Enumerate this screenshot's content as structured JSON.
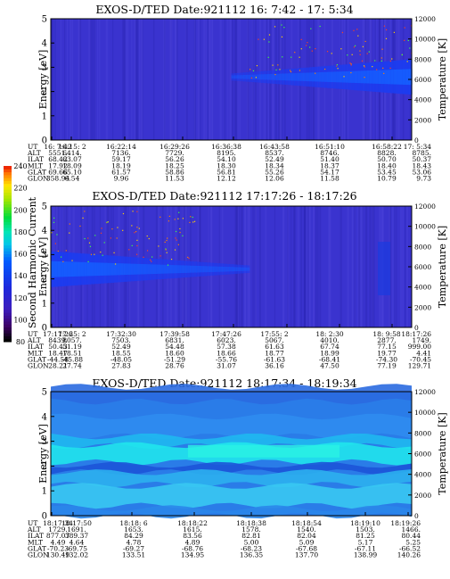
{
  "chart_data": [
    {
      "type": "heatmap",
      "title": "EXOS-D/TED   Date:921112  16: 7:42 - 17: 5:34",
      "ylabel": "Energy [eV]",
      "y2label": "Temperature [K]",
      "ylim": [
        0,
        5
      ],
      "y2lim": [
        0,
        12000
      ],
      "yticks": [
        "0",
        "1",
        "2",
        "3",
        "4",
        "5"
      ],
      "y2ticks": [
        "0",
        "2000",
        "4000",
        "6000",
        "8000",
        "10000",
        "12000"
      ],
      "ephemeris": {
        "row_labels": [
          "UT",
          "ALT",
          "ILAT",
          "MLT",
          "GLAT",
          "GLON"
        ],
        "columns": [
          [
            "16: 7:42",
            "5551.",
            "68.42",
            "17.92",
            "69.66",
            "358.94"
          ],
          [
            "16:15: 2",
            "6414.",
            "63.07",
            "18.09",
            "65.10",
            "6.54"
          ],
          [
            "16:22:14",
            "7136.",
            "59.17",
            "18.19",
            "61.57",
            "9.96"
          ],
          [
            "16:29:26",
            "7729.",
            "56.26",
            "18.25",
            "58.86",
            "11.53"
          ],
          [
            "16:36:38",
            "8195.",
            "54.10",
            "18.30",
            "56.81",
            "12.12"
          ],
          [
            "16:43:58",
            "8537.",
            "52.49",
            "18.34",
            "55.26",
            "12.06"
          ],
          [
            "16:51:10",
            "8746.",
            "51.40",
            "18.37",
            "54.17",
            "11.58"
          ],
          [
            "16:58:22",
            "8828.",
            "50.70",
            "18.40",
            "53.45",
            "10.79"
          ],
          [
            "17: 5:34",
            "8785.",
            "50.37",
            "18.43",
            "53.06",
            "9.73"
          ]
        ]
      },
      "band": [
        {
          "energy": 2.6,
          "time_start": "16:36:38",
          "time_end": "17: 5:34",
          "intensity": "high (~150)"
        }
      ]
    },
    {
      "type": "heatmap",
      "title": "EXOS-D/TED   Date:921112  17:17:26 - 18:17:26",
      "ylabel": "Energy [eV]",
      "y2label": "Temperature [K]",
      "ylim": [
        0,
        5
      ],
      "y2lim": [
        0,
        12000
      ],
      "yticks": [
        "0",
        "1",
        "2",
        "3",
        "4",
        "5"
      ],
      "y2ticks": [
        "0",
        "2000",
        "4000",
        "6000",
        "8000",
        "10000",
        "12000"
      ],
      "colorbar": {
        "label": "Second Harmonic Current",
        "ticks": [
          "80",
          "100",
          "120",
          "140",
          "160",
          "180",
          "200",
          "220",
          "240"
        ],
        "range": [
          80,
          240
        ]
      },
      "ephemeris": {
        "row_labels": [
          "UT",
          "ALT",
          "ILAT",
          "MLT",
          "GLAT",
          "GLON"
        ],
        "columns": [
          [
            "17:17:26",
            "8439.",
            "50.43",
            "18.47",
            "-44.58",
            "28.21"
          ],
          [
            "17:25: 2",
            "8057.",
            "51.19",
            "18.51",
            "-45.88",
            "27.74"
          ],
          [
            "17:32:30",
            "7503.",
            "52.49",
            "18.55",
            "-48.05",
            "27.83"
          ],
          [
            "17:39:58",
            "6831.",
            "54.48",
            "18.60",
            "-51.29",
            "28.76"
          ],
          [
            "17:47:26",
            "6023.",
            "57.38",
            "18.66",
            "-55.76",
            "31.07"
          ],
          [
            "17:55: 2",
            "5067.",
            "61.63",
            "18.77",
            "-61.63",
            "36.16"
          ],
          [
            "18: 2:30",
            "4010.",
            "67.74",
            "18.99",
            "-68.41",
            "47.50"
          ],
          [
            "18: 9:58",
            "2877.",
            "77.15",
            "19.77",
            "-74.30",
            "77.19"
          ],
          [
            "18:17:26",
            "1749.",
            "999.00",
            "4.41",
            "-70.45",
            "129.71"
          ]
        ]
      },
      "band": [
        {
          "energy": 2.4,
          "time_start": "17:17:26",
          "time_end": "17:47:26",
          "intensity": "high (~150)"
        }
      ]
    },
    {
      "type": "heatmap",
      "title": "EXOS-D/TED   Date:921112  18:17:34 - 18:19:34",
      "ylabel": "Energy [eV]",
      "y2label": "Temperature [K]",
      "ylim": [
        0,
        5
      ],
      "y2lim": [
        0,
        12000
      ],
      "yticks": [
        "0",
        "1",
        "2",
        "3",
        "4",
        "5"
      ],
      "y2ticks": [
        "0",
        "2000",
        "4000",
        "6000",
        "8000",
        "10000",
        "12000"
      ],
      "ephemeris": {
        "row_labels": [
          "UT",
          "ALT",
          "ILAT",
          "MLT",
          "GLAT",
          "GLON"
        ],
        "columns": [
          [
            "18:17:34",
            "1729.",
            "877.07",
            "4.49",
            "-70.23",
            "130.49"
          ],
          [
            "18:17:50",
            "1691.",
            "389.37",
            "4.64",
            "-69.75",
            "132.02"
          ],
          [
            "18:18: 6",
            "1653.",
            "84.29",
            "4.78",
            "-69.27",
            "133.51"
          ],
          [
            "18:18:22",
            "1615.",
            "83.56",
            "4.89",
            "-68.76",
            "134.95"
          ],
          [
            "18:18:38",
            "1578.",
            "82.81",
            "5.00",
            "-68.23",
            "136.35"
          ],
          [
            "18:18:54",
            "1540.",
            "82.04",
            "5.09",
            "-67.68",
            "137.70"
          ],
          [
            "18:19:10",
            "1503.",
            "81.25",
            "5.17",
            "-67.11",
            "138.99"
          ],
          [
            "18:19:26",
            "1466.",
            "80.44",
            "5.25",
            "-66.52",
            "140.26"
          ]
        ]
      },
      "band": [
        {
          "energy": 2.5,
          "time_start": "18:17:34",
          "time_end": "18:19:34",
          "intensity": "very high (~170)"
        }
      ]
    }
  ]
}
